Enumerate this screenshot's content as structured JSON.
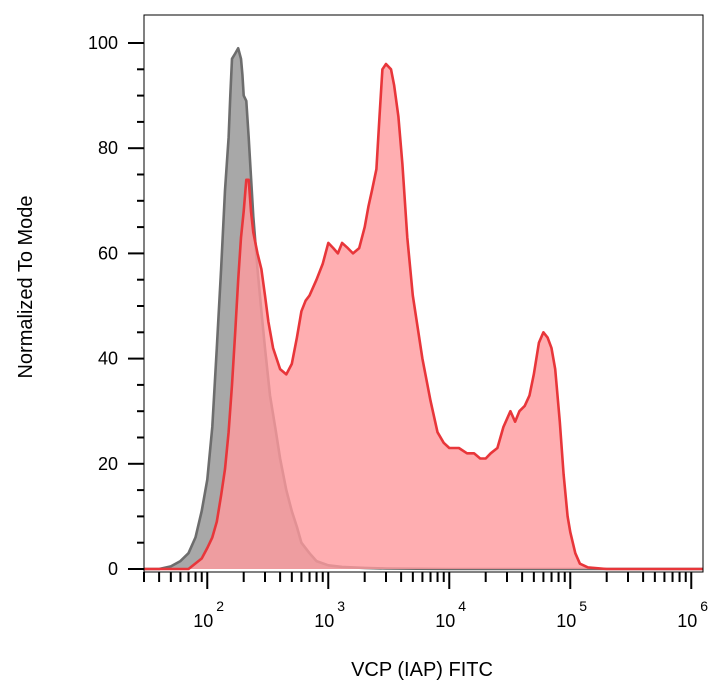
{
  "chart_data": {
    "type": "area",
    "title": "",
    "xlabel": "VCP (IAP) FITC",
    "ylabel": "Normalized To Mode",
    "x_scale": "log",
    "xlim": [
      30,
      1250000
    ],
    "ylim": [
      0,
      100
    ],
    "x_ticks": [
      {
        "base": "10",
        "exp": "2",
        "value": 100
      },
      {
        "base": "10",
        "exp": "3",
        "value": 1000
      },
      {
        "base": "10",
        "exp": "4",
        "value": 10000
      },
      {
        "base": "10",
        "exp": "5",
        "value": 100000
      },
      {
        "base": "10",
        "exp": "6",
        "value": 1000000
      }
    ],
    "y_ticks": [
      "0",
      "20",
      "40",
      "60",
      "80",
      "100"
    ],
    "grid": false,
    "legend": "none",
    "series": [
      {
        "color": "#6d6d6d",
        "fill": "#a8a8a8",
        "points": [
          [
            30,
            0
          ],
          [
            40,
            0
          ],
          [
            50,
            0.5
          ],
          [
            60,
            1.5
          ],
          [
            70,
            3
          ],
          [
            80,
            6
          ],
          [
            90,
            11
          ],
          [
            100,
            17
          ],
          [
            110,
            27
          ],
          [
            120,
            42
          ],
          [
            130,
            57
          ],
          [
            140,
            72
          ],
          [
            150,
            82
          ],
          [
            155,
            90
          ],
          [
            160,
            97
          ],
          [
            170,
            98
          ],
          [
            180,
            99
          ],
          [
            190,
            97
          ],
          [
            195,
            94
          ],
          [
            200,
            90
          ],
          [
            210,
            89
          ],
          [
            220,
            82
          ],
          [
            240,
            67
          ],
          [
            260,
            57
          ],
          [
            280,
            49
          ],
          [
            300,
            42
          ],
          [
            330,
            33
          ],
          [
            370,
            26
          ],
          [
            400,
            21
          ],
          [
            450,
            15
          ],
          [
            500,
            11
          ],
          [
            550,
            8
          ],
          [
            600,
            5
          ],
          [
            700,
            3
          ],
          [
            800,
            1.5
          ],
          [
            1000,
            0.7
          ],
          [
            1300,
            0.4
          ],
          [
            2000,
            0.2
          ],
          [
            3000,
            0.1
          ],
          [
            10000,
            0
          ],
          [
            1250000,
            0
          ]
        ]
      },
      {
        "color": "#e8363a",
        "fill": "#ff9a9e",
        "points": [
          [
            30,
            0
          ],
          [
            70,
            0
          ],
          [
            90,
            2
          ],
          [
            100,
            4
          ],
          [
            110,
            6
          ],
          [
            120,
            9
          ],
          [
            130,
            14
          ],
          [
            140,
            19
          ],
          [
            150,
            26
          ],
          [
            160,
            35
          ],
          [
            170,
            45
          ],
          [
            180,
            55
          ],
          [
            190,
            63
          ],
          [
            200,
            68
          ],
          [
            210,
            74
          ],
          [
            220,
            74
          ],
          [
            230,
            68
          ],
          [
            240,
            64
          ],
          [
            260,
            60
          ],
          [
            280,
            57
          ],
          [
            300,
            52
          ],
          [
            320,
            47
          ],
          [
            350,
            42
          ],
          [
            400,
            38
          ],
          [
            450,
            37
          ],
          [
            500,
            39
          ],
          [
            550,
            44
          ],
          [
            600,
            49
          ],
          [
            650,
            51
          ],
          [
            700,
            52
          ],
          [
            800,
            55
          ],
          [
            900,
            58
          ],
          [
            1000,
            62
          ],
          [
            1100,
            61
          ],
          [
            1200,
            60
          ],
          [
            1300,
            62
          ],
          [
            1450,
            61
          ],
          [
            1600,
            60
          ],
          [
            1800,
            61
          ],
          [
            2000,
            65
          ],
          [
            2150,
            69
          ],
          [
            2300,
            72
          ],
          [
            2500,
            76
          ],
          [
            2650,
            86
          ],
          [
            2800,
            95
          ],
          [
            3000,
            96
          ],
          [
            3300,
            95
          ],
          [
            3500,
            92
          ],
          [
            3800,
            86
          ],
          [
            4100,
            77
          ],
          [
            4500,
            63
          ],
          [
            5000,
            52
          ],
          [
            6000,
            40
          ],
          [
            7000,
            32
          ],
          [
            8000,
            26
          ],
          [
            9000,
            24
          ],
          [
            10000,
            23
          ],
          [
            12000,
            23
          ],
          [
            14000,
            22
          ],
          [
            16000,
            22
          ],
          [
            18000,
            21
          ],
          [
            20000,
            21
          ],
          [
            22000,
            22
          ],
          [
            25000,
            23
          ],
          [
            28000,
            27
          ],
          [
            32000,
            30
          ],
          [
            35000,
            28
          ],
          [
            38000,
            30
          ],
          [
            42000,
            31
          ],
          [
            46000,
            33
          ],
          [
            50000,
            37
          ],
          [
            55000,
            43
          ],
          [
            60000,
            45
          ],
          [
            65000,
            44
          ],
          [
            70000,
            42
          ],
          [
            75000,
            38
          ],
          [
            82000,
            28
          ],
          [
            88000,
            18
          ],
          [
            95000,
            10
          ],
          [
            100000,
            7
          ],
          [
            110000,
            3
          ],
          [
            120000,
            1
          ],
          [
            140000,
            0.3
          ],
          [
            200000,
            0
          ],
          [
            1250000,
            0
          ]
        ]
      }
    ]
  }
}
